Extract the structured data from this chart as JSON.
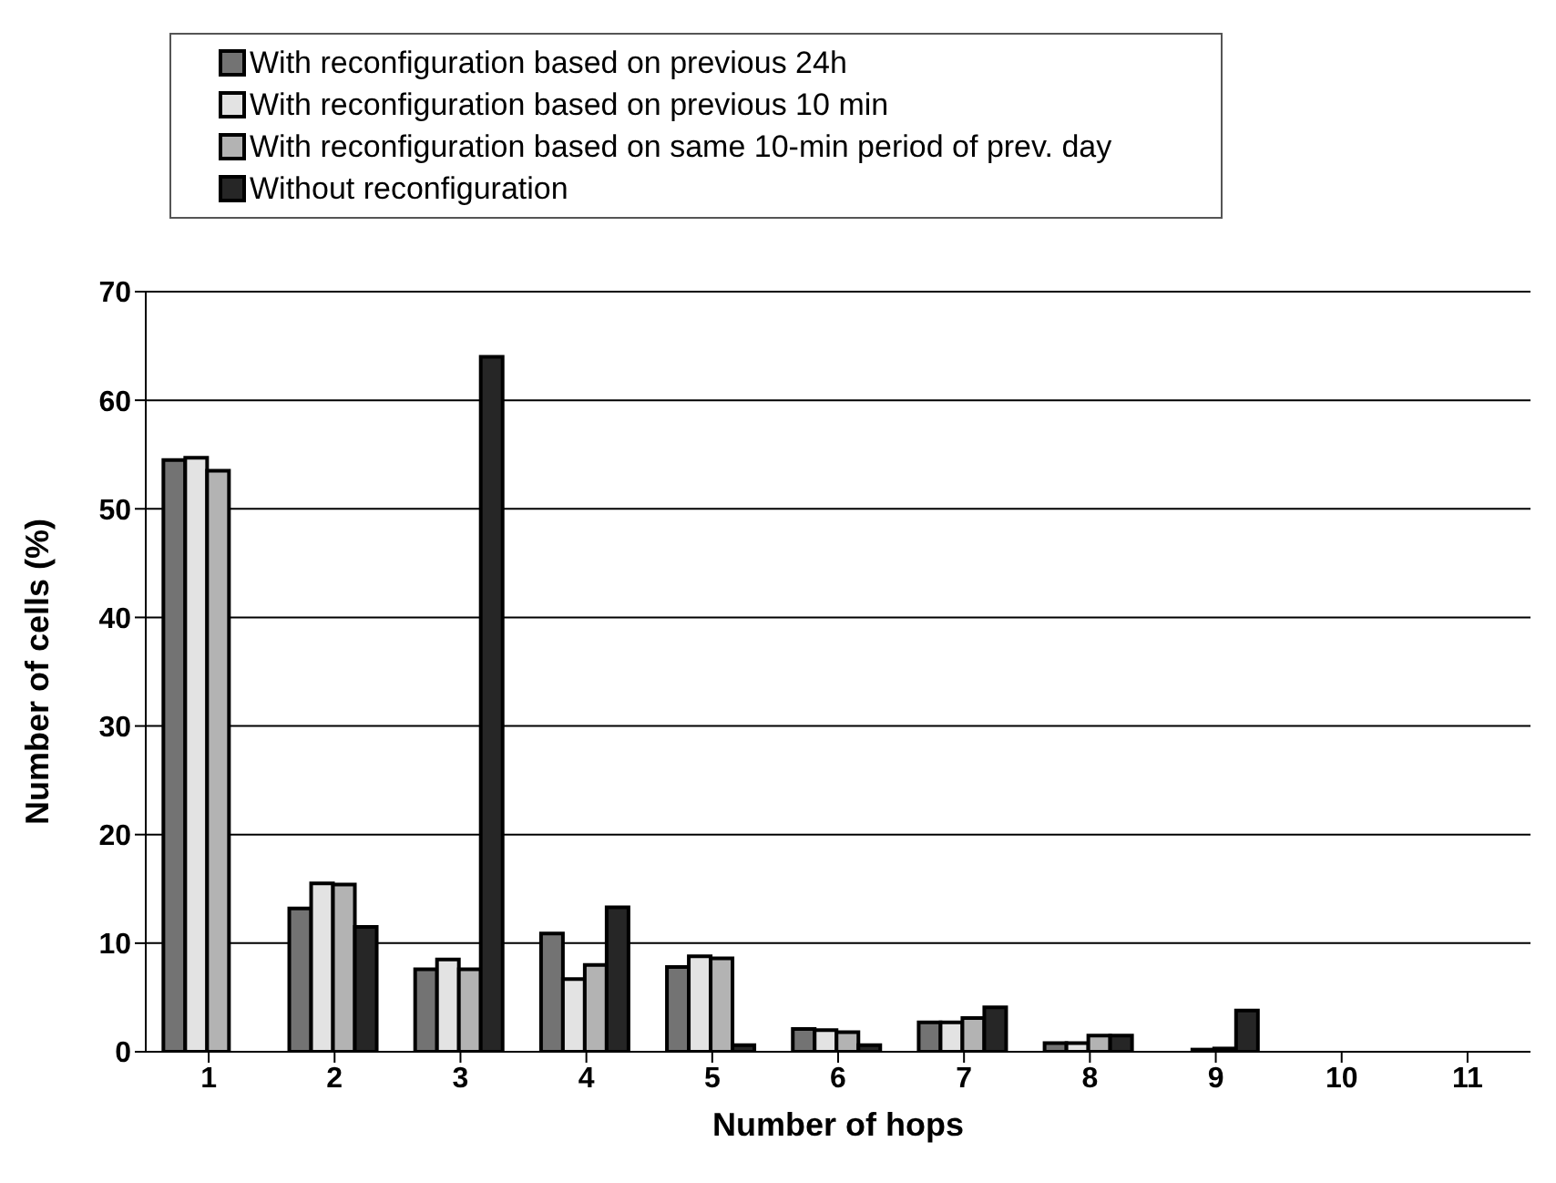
{
  "chart_data": {
    "type": "bar",
    "xlabel": "Number of hops",
    "ylabel": "Number of cells (%)",
    "categories": [
      "1",
      "2",
      "3",
      "4",
      "5",
      "6",
      "7",
      "8",
      "9",
      "10",
      "11"
    ],
    "series": [
      {
        "name": "With reconfiguration based on previous 24h",
        "color": "#737373",
        "values": [
          54.5,
          13.2,
          7.6,
          10.9,
          7.8,
          2.1,
          2.7,
          0.8,
          null,
          0,
          0
        ]
      },
      {
        "name": "With reconfiguration based on previous 10 min",
        "color": "#e3e3e3",
        "values": [
          54.7,
          15.5,
          8.5,
          6.7,
          8.8,
          2.0,
          2.7,
          0.8,
          0.2,
          0,
          0
        ]
      },
      {
        "name": "With reconfiguration based on same 10-min period of prev. day",
        "color": "#b3b3b3",
        "values": [
          53.5,
          15.4,
          7.6,
          8.0,
          8.6,
          1.8,
          3.1,
          1.5,
          0.3,
          0,
          0
        ]
      },
      {
        "name": "Without reconfiguration",
        "color": "#262626",
        "values": [
          0,
          11.5,
          64,
          13.3,
          0.6,
          0.6,
          4.1,
          1.5,
          3.8,
          0,
          0
        ]
      }
    ],
    "ylim": [
      0,
      70
    ],
    "yticks": [
      0,
      10,
      20,
      30,
      40,
      50,
      60,
      70
    ],
    "grid": "y",
    "legend": "top"
  }
}
